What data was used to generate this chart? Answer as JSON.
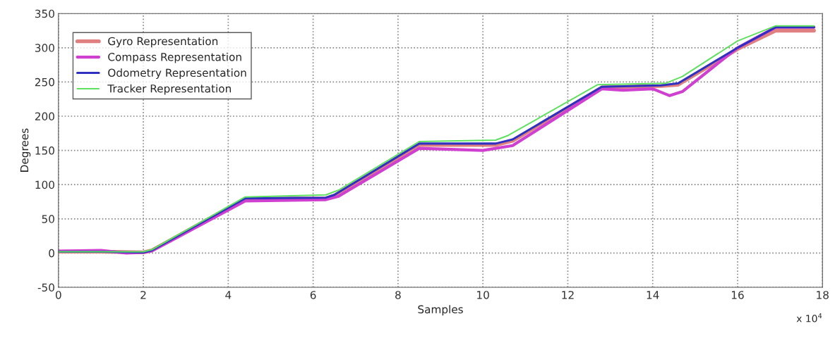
{
  "chart_data": {
    "type": "line",
    "xlabel": "Samples",
    "ylabel": "Degrees",
    "annotations": [
      "x 10$^{4}$"
    ],
    "xlim": [
      0,
      18
    ],
    "xticks": [
      0,
      2,
      4,
      6,
      8,
      10,
      12,
      14,
      16,
      18
    ],
    "ylim": [
      -50,
      350
    ],
    "yticks": [
      -50,
      0,
      50,
      100,
      150,
      200,
      250,
      300,
      350
    ],
    "grid": true,
    "legend": "top left",
    "line_style": "solid",
    "marker": "none",
    "series": [
      {
        "name": "Gyro Representation",
        "color": "#e08080",
        "x": [
          0,
          1,
          2,
          2.2,
          4.4,
          6.3,
          6.5,
          8.5,
          10.3,
          10.7,
          12.8,
          14.2,
          14.6,
          16,
          16.9,
          17.8
        ],
        "values": [
          2,
          2,
          1,
          4,
          79,
          80,
          84,
          158,
          158,
          164,
          242,
          244,
          246,
          298,
          325,
          325
        ]
      },
      {
        "name": "Compass Representation",
        "color": "#d040d0",
        "x": [
          0,
          1,
          1.6,
          2,
          2.2,
          4.4,
          6.3,
          6.6,
          8.5,
          10,
          10.7,
          12.8,
          13.3,
          14,
          14.4,
          14.7,
          16,
          16.9,
          17.8
        ],
        "values": [
          3,
          4,
          0,
          1,
          3,
          76,
          78,
          83,
          153,
          150,
          157,
          240,
          238,
          240,
          230,
          236,
          300,
          330,
          330
        ]
      },
      {
        "name": "Odometry Representation",
        "color": "#3030c0",
        "x": [
          0,
          1,
          2,
          2.2,
          4.4,
          6.3,
          6.5,
          8.5,
          10.3,
          10.7,
          12.8,
          14.2,
          14.6,
          16,
          16.9,
          17.8
        ],
        "values": [
          2,
          2,
          1,
          4,
          80,
          81,
          85,
          160,
          160,
          166,
          243,
          245,
          248,
          300,
          330,
          330
        ]
      },
      {
        "name": "Tracker Representation",
        "color": "#60e060",
        "x": [
          0,
          1,
          2,
          2.2,
          4.4,
          6.3,
          6.6,
          8.5,
          10.3,
          10.6,
          12.7,
          14.3,
          14.7,
          16,
          16.9,
          17.8
        ],
        "values": [
          2,
          2,
          2,
          5,
          82,
          85,
          92,
          163,
          165,
          172,
          246,
          248,
          258,
          310,
          332,
          332
        ]
      }
    ]
  }
}
